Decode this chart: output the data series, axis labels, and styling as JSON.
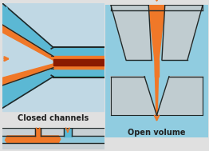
{
  "orange": "#f07828",
  "dark_red": "#8b1a00",
  "blue_ch": "#5bb8d4",
  "teal_line": "#40b8b0",
  "bg_grad": "#c0d8e0",
  "gray_block": "#c8d4d8",
  "dark_line": "#202828",
  "light_blue_bg": "#88c8e0",
  "white_gray": "#e0e8ec",
  "label_color": "#202020",
  "title_fs": 7.0,
  "fig_bg": "#e0e0e0"
}
